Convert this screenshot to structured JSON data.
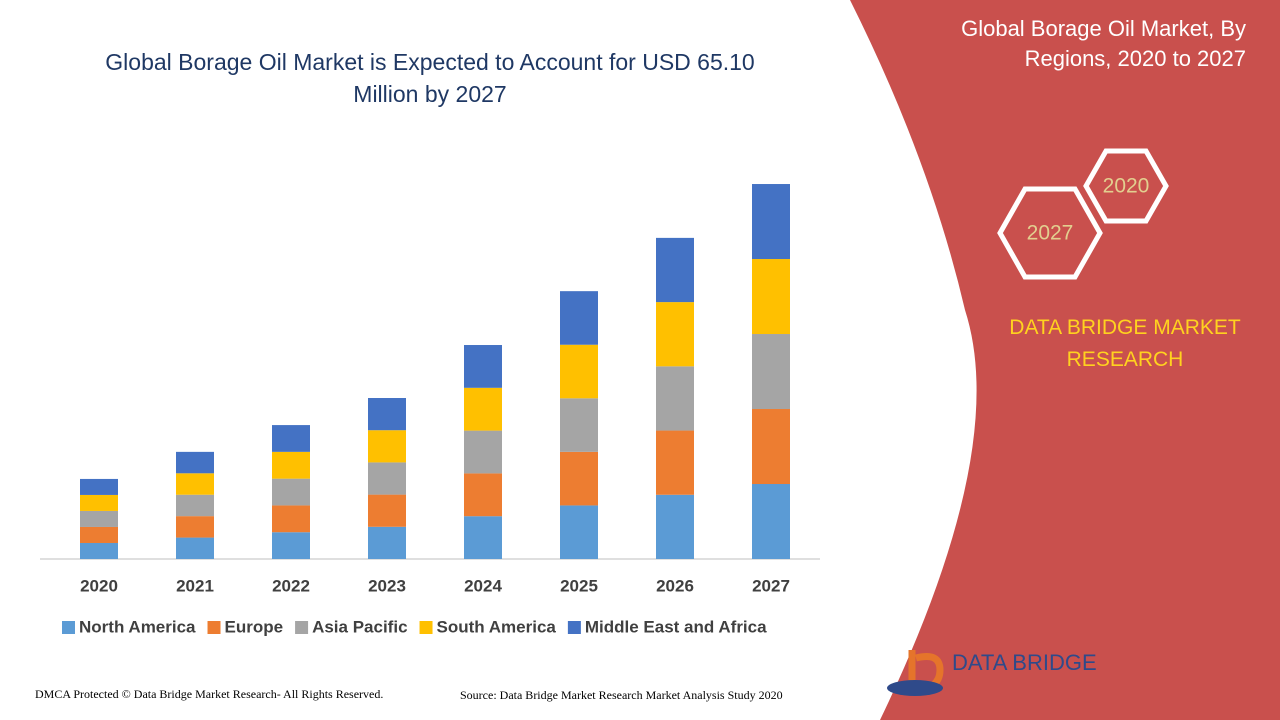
{
  "chart_data": {
    "type": "bar",
    "stacked": true,
    "title": "Global Borage Oil Market is Expected to Account for USD 65.10 Million by 2027",
    "categories": [
      "2020",
      "2021",
      "2022",
      "2023",
      "2024",
      "2025",
      "2026",
      "2027"
    ],
    "series": [
      {
        "name": "North America",
        "color": "#5b9bd5",
        "values": [
          2.78,
          3.72,
          4.65,
          5.59,
          7.43,
          9.3,
          11.15,
          13.02
        ]
      },
      {
        "name": "Europe",
        "color": "#ed7d31",
        "values": [
          2.78,
          3.72,
          4.65,
          5.59,
          7.43,
          9.3,
          11.15,
          13.02
        ]
      },
      {
        "name": "Asia Pacific",
        "color": "#a5a5a5",
        "values": [
          2.78,
          3.72,
          4.65,
          5.59,
          7.43,
          9.3,
          11.15,
          13.02
        ]
      },
      {
        "name": "South America",
        "color": "#ffc000",
        "values": [
          2.78,
          3.72,
          4.65,
          5.59,
          7.43,
          9.3,
          11.15,
          13.02
        ]
      },
      {
        "name": "Middle East and Africa",
        "color": "#4472c4",
        "values": [
          2.78,
          3.72,
          4.65,
          5.59,
          7.43,
          9.3,
          11.15,
          13.02
        ]
      }
    ],
    "ylim": [
      0,
      75
    ],
    "grid": false,
    "legend": "bottom"
  },
  "panel": {
    "title": "Global Borage Oil Market, By Regions, 2020 to 2027",
    "badges": [
      "2020",
      "2027"
    ],
    "brand": "DATA BRIDGE MARKET RESEARCH"
  },
  "footer": {
    "copyright": "DMCA Protected © Data Bridge Market Research- All Rights Reserved.",
    "source": "Source: Data Bridge Market Research Market Analysis Study 2020",
    "logo": "DATA BRIDGE"
  }
}
